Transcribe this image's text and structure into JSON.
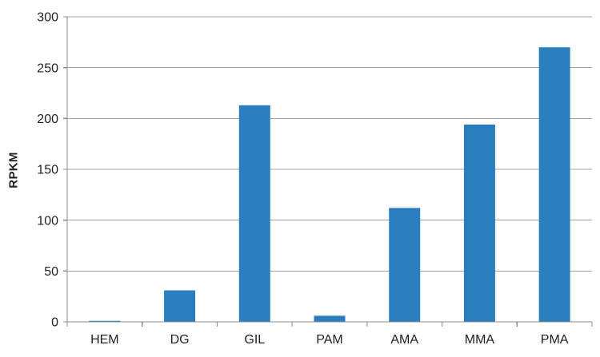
{
  "chart_data": {
    "type": "bar",
    "title": "",
    "xlabel": "",
    "ylabel": "RPKM",
    "categories": [
      "HEM",
      "DG",
      "GIL",
      "PAM",
      "AMA",
      "MMA",
      "PMA"
    ],
    "values": [
      1,
      31,
      213,
      6,
      112,
      194,
      270
    ],
    "ylim": [
      0,
      300
    ],
    "yticks": [
      0,
      50,
      100,
      150,
      200,
      250,
      300
    ],
    "grid": true,
    "legend": false,
    "bar_color": "#2A7EBE",
    "grid_color": "#A0A0A0",
    "axis_color": "#8C8C8C",
    "text_color": "#1F1F1F",
    "background_color": "#FFFFFF"
  }
}
